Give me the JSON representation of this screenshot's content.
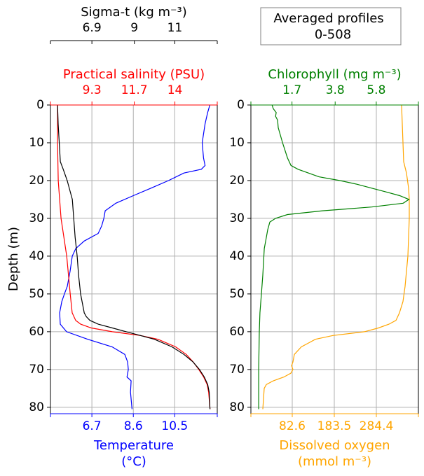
{
  "chart_data": [
    {
      "type": "profile",
      "ylabel": "Depth (m)",
      "ylim": [
        81.7,
        0
      ],
      "yticks": [
        0,
        10,
        20,
        30,
        40,
        50,
        60,
        70,
        80
      ],
      "grid": true,
      "axes": [
        {
          "position": "bottom",
          "label": [
            "Temperature",
            "(°C)"
          ],
          "color": "#0000ff",
          "xlim": [
            4.8,
            12.45
          ],
          "xticks": [
            6.7,
            8.6,
            10.5
          ],
          "depth": [
            0,
            2,
            5,
            10,
            14,
            16,
            17,
            18,
            20,
            22,
            24,
            26,
            28,
            30,
            32,
            34,
            36,
            38,
            40,
            44,
            48,
            50,
            52,
            55,
            58,
            60,
            62,
            64,
            66,
            68,
            70,
            72,
            73,
            76,
            80.5
          ],
          "values": [
            12.11,
            12.01,
            11.89,
            11.76,
            11.82,
            11.89,
            11.72,
            10.92,
            10.21,
            9.41,
            8.6,
            7.8,
            7.31,
            7.25,
            7.15,
            6.99,
            6.35,
            5.96,
            5.8,
            5.7,
            5.57,
            5.44,
            5.32,
            5.22,
            5.25,
            5.54,
            6.51,
            7.63,
            8.21,
            8.34,
            8.37,
            8.31,
            8.5,
            8.47,
            8.54
          ]
        },
        {
          "position": "top",
          "label": [
            "Practical salinity (PSU)"
          ],
          "color": "#ff0000",
          "xlim": [
            6.95,
            16.4
          ],
          "xticks": [
            9.3,
            11.7,
            14.0
          ],
          "depth": [
            0,
            10,
            20,
            30,
            40,
            50,
            55,
            57,
            58,
            59,
            60,
            61,
            62,
            64,
            66,
            68,
            70,
            72,
            74,
            76,
            80.5
          ],
          "values": [
            7.35,
            7.35,
            7.39,
            7.55,
            7.87,
            8.07,
            8.18,
            8.38,
            8.66,
            9.26,
            10.45,
            12.05,
            13.04,
            14.04,
            14.64,
            15.04,
            15.35,
            15.63,
            15.83,
            15.91,
            15.99
          ]
        },
        {
          "position": "top-offset",
          "label": [
            "Sigma-t (kg m⁻³)"
          ],
          "color": "#000000",
          "xlim": [
            4.85,
            13.1
          ],
          "xticks": [
            6.9,
            9.0,
            11.0
          ],
          "depth": [
            0,
            5,
            15,
            17,
            20,
            25,
            30,
            35,
            40,
            45,
            50,
            55,
            56,
            57,
            58,
            59,
            60,
            61,
            62,
            64,
            66,
            68,
            70,
            72,
            74,
            76,
            80.5
          ],
          "values": [
            5.2,
            5.23,
            5.34,
            5.48,
            5.68,
            5.93,
            6.0,
            6.07,
            6.17,
            6.24,
            6.34,
            6.52,
            6.62,
            6.8,
            7.21,
            7.91,
            8.6,
            9.3,
            9.99,
            10.86,
            11.45,
            11.9,
            12.22,
            12.46,
            12.63,
            12.7,
            12.74
          ]
        }
      ]
    },
    {
      "type": "profile",
      "ylim": [
        81.7,
        0
      ],
      "yticks": [
        0,
        10,
        20,
        30,
        40,
        50,
        60,
        70,
        80
      ],
      "grid": true,
      "annotation": [
        "Averaged profiles",
        "0-508"
      ],
      "axes": [
        {
          "position": "bottom",
          "label": [
            "Dissolved oxygen",
            "(mmol m⁻³)"
          ],
          "color": "#ffa500",
          "xlim": [
            -16.6,
            385.3
          ],
          "xticks": [
            82.6,
            183.5,
            284.4
          ],
          "depth": [
            0,
            5,
            15,
            18,
            22,
            25,
            30,
            40,
            48,
            52,
            55,
            57,
            58,
            59,
            60,
            61,
            62,
            63,
            64,
            66,
            68,
            69,
            70,
            71,
            72,
            73,
            74,
            75,
            80.5
          ],
          "values": [
            345.0,
            346.6,
            350.0,
            356.7,
            361.8,
            363.5,
            363.5,
            360.1,
            353.4,
            348.3,
            339.9,
            331.5,
            314.7,
            289.5,
            255.8,
            180.2,
            138.1,
            121.3,
            104.5,
            87.7,
            84.3,
            81.0,
            84.3,
            79.3,
            62.4,
            37.2,
            20.4,
            15.4,
            12.0
          ]
        },
        {
          "position": "top",
          "label": [
            "Chlorophyll (mg m⁻³)"
          ],
          "color": "#008000",
          "xlim": [
            -0.3,
            7.85
          ],
          "xticks": [
            1.7,
            3.8,
            5.8
          ],
          "depth": [
            0,
            1,
            2,
            3,
            4,
            6,
            10,
            14,
            16,
            17,
            19,
            20,
            21,
            22,
            23,
            24,
            25,
            26,
            27,
            28,
            29,
            30,
            31,
            33,
            36,
            38,
            45,
            50,
            55,
            60,
            70,
            80.5
          ],
          "values": [
            0.73,
            0.79,
            0.93,
            0.9,
            1.0,
            1.03,
            1.24,
            1.48,
            1.65,
            1.99,
            3.01,
            4.04,
            4.89,
            5.58,
            6.26,
            6.94,
            7.39,
            7.11,
            5.58,
            3.19,
            1.48,
            0.9,
            0.62,
            0.52,
            0.42,
            0.35,
            0.28,
            0.21,
            0.14,
            0.11,
            0.08,
            0.08
          ]
        }
      ]
    }
  ]
}
